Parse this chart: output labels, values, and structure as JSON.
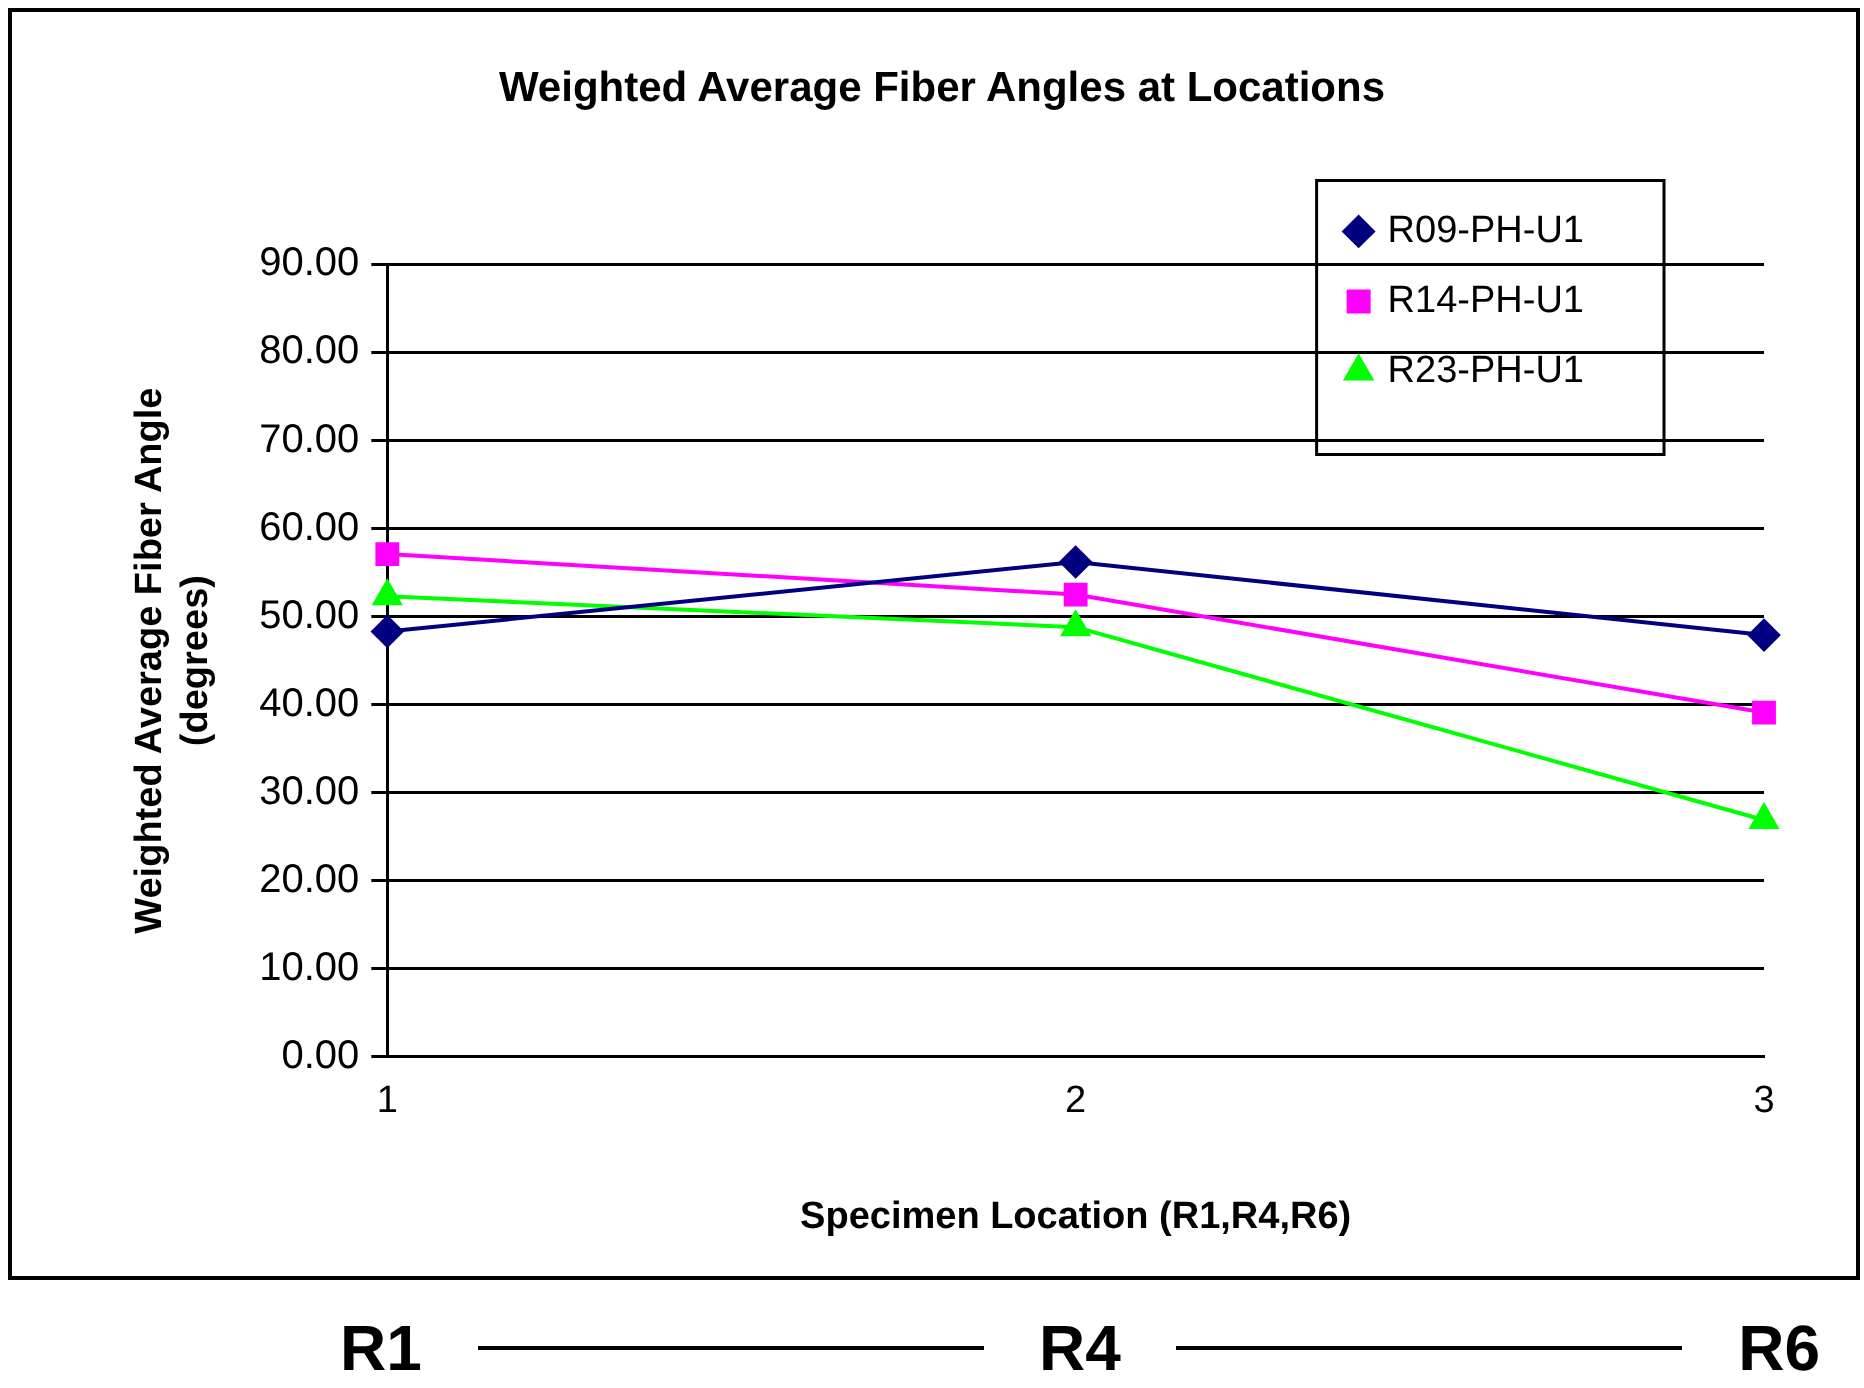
{
  "chart_data": {
    "type": "line",
    "title": "Weighted Average Fiber Angles at Locations",
    "xlabel": "Specimen Location (R1,R4,R6)",
    "ylabel": "Weighted Average Fiber Angle (degrees)",
    "categories": [
      "1",
      "2",
      "3"
    ],
    "series": [
      {
        "name": "R09-PH-U1",
        "color": "#000080",
        "marker": "diamond",
        "values": [
          48.3,
          56.2,
          47.9
        ]
      },
      {
        "name": "R14-PH-U1",
        "color": "#ff00ff",
        "marker": "square",
        "values": [
          57.1,
          52.5,
          39.1
        ]
      },
      {
        "name": "R23-PH-U1",
        "color": "#00ff00",
        "marker": "triangle",
        "values": [
          52.3,
          48.8,
          26.9
        ]
      }
    ],
    "ylim": [
      0,
      90
    ],
    "yticks": [
      {
        "value": 0,
        "label": "0.00"
      },
      {
        "value": 10,
        "label": "10.00"
      },
      {
        "value": 20,
        "label": "20.00"
      },
      {
        "value": 30,
        "label": "30.00"
      },
      {
        "value": 40,
        "label": "40.00"
      },
      {
        "value": 50,
        "label": "50.00"
      },
      {
        "value": 60,
        "label": "60.00"
      },
      {
        "value": 70,
        "label": "70.00"
      },
      {
        "value": 80,
        "label": "80.00"
      },
      {
        "value": 90,
        "label": "90.00"
      }
    ],
    "grid": "y",
    "legend": "top right",
    "line_style": "solid",
    "annotations": [
      "R1",
      "R4",
      "R6"
    ]
  }
}
